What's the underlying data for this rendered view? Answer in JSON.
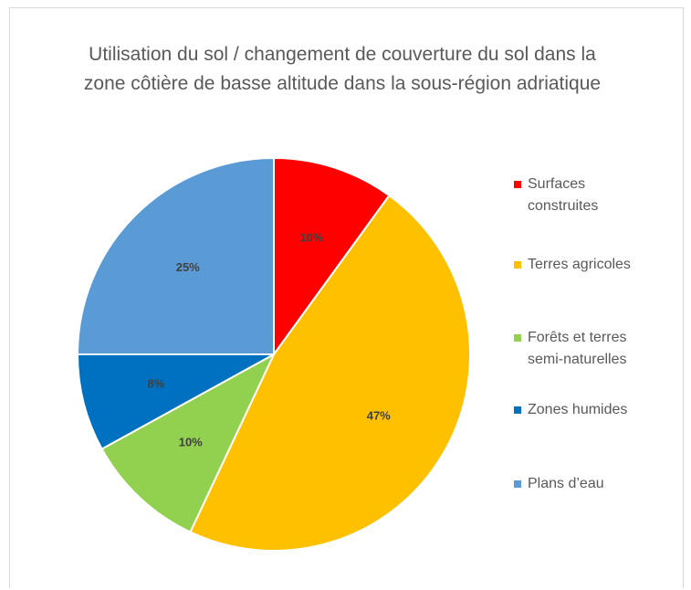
{
  "chart_data": {
    "type": "pie",
    "title": "Utilisation du sol / changement de couverture du sol dans la zone côtière de basse altitude dans la sous-région adriatique",
    "categories": [
      "Surfaces construites",
      "Terres agricoles",
      "Forêts et terres semi-naturelles",
      "Zones humides",
      "Plans d’eau"
    ],
    "values": [
      10,
      47,
      10,
      8,
      25
    ],
    "value_labels": [
      "10%",
      "47%",
      "10%",
      "8%",
      "25%"
    ],
    "colors": [
      "#ff0000",
      "#ffc000",
      "#92d050",
      "#0070c0",
      "#5b9bd5"
    ],
    "legend": "right"
  }
}
